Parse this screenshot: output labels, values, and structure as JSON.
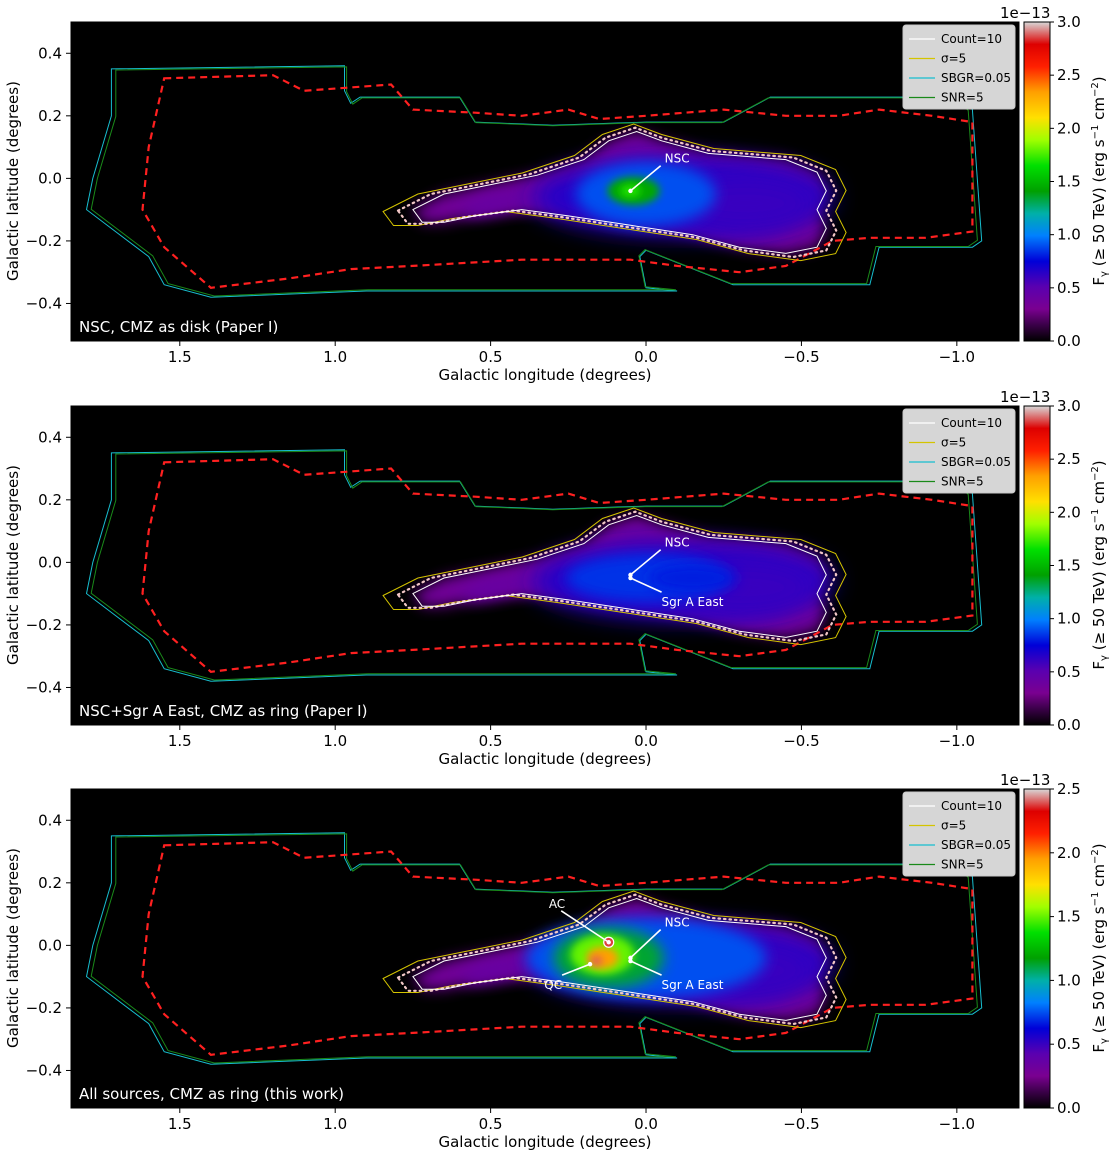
{
  "figure": {
    "xlabel": "Galactic longitude (degrees)",
    "ylabel": "Galactic latitude (degrees)",
    "colorbar_label": "F",
    "colorbar_label_sub": "γ",
    "colorbar_label_rest": " (≥ 50 TeV) (erg s",
    "colorbar_label_exp": "−1",
    "colorbar_label_unit": " cm",
    "colorbar_label_exp2": "−2",
    "colorbar_label_end": ")",
    "colorbar_multiplier": "1e−13",
    "legend": [
      {
        "label": "Count=10",
        "color": "#ffffff"
      },
      {
        "label": "σ=5",
        "color": "#d4c400"
      },
      {
        "label": "SBGR=0.05",
        "color": "#17becf"
      },
      {
        "label": "SNR=5",
        "color": "#1a8a1a"
      }
    ],
    "colors": {
      "background": "#000000",
      "red_dashed": "#ff2020",
      "dotted": "#f2c7c7"
    }
  },
  "chart_data": [
    {
      "type": "heatmap",
      "panel_label": "NSC, CMZ as disk (Paper I)",
      "xlim": [
        1.85,
        -1.2
      ],
      "ylim": [
        -0.52,
        0.5
      ],
      "xticks": [
        1.5,
        1.0,
        0.5,
        0.0,
        -0.5,
        -1.0
      ],
      "xtick_labels": [
        "1.5",
        "1.0",
        "0.5",
        "0.0",
        "−0.5",
        "−1.0"
      ],
      "yticks": [
        0.4,
        0.2,
        0.0,
        -0.2,
        -0.4
      ],
      "ytick_labels": [
        "0.4",
        "0.2",
        "0.0",
        "−0.2",
        "−0.4"
      ],
      "colorbar_range": [
        0.0,
        3.0
      ],
      "colorbar_ticks": [
        "0.0",
        "0.5",
        "1.0",
        "1.5",
        "2.0",
        "2.5",
        "3.0"
      ],
      "peak_value": 1.7,
      "annotations": [
        {
          "text": "NSC",
          "l": -0.06,
          "b": 0.05,
          "target_l": 0.05,
          "target_b": -0.04
        }
      ],
      "legend_placement": "top-right",
      "grid": false
    },
    {
      "type": "heatmap",
      "panel_label": "NSC+Sgr A East, CMZ as ring (Paper I)",
      "xlim": [
        1.85,
        -1.2
      ],
      "ylim": [
        -0.52,
        0.5
      ],
      "xticks": [
        1.5,
        1.0,
        0.5,
        0.0,
        -0.5,
        -1.0
      ],
      "xtick_labels": [
        "1.5",
        "1.0",
        "0.5",
        "0.0",
        "−0.5",
        "−1.0"
      ],
      "yticks": [
        0.4,
        0.2,
        0.0,
        -0.2,
        -0.4
      ],
      "ytick_labels": [
        "0.4",
        "0.2",
        "0.0",
        "−0.2",
        "−0.4"
      ],
      "colorbar_range": [
        0.0,
        3.0
      ],
      "colorbar_ticks": [
        "0.0",
        "0.5",
        "1.0",
        "1.5",
        "2.0",
        "2.5",
        "3.0"
      ],
      "peak_value": 0.8,
      "annotations": [
        {
          "text": "NSC",
          "l": -0.06,
          "b": 0.05,
          "target_l": 0.05,
          "target_b": -0.04
        },
        {
          "text": "Sgr A East",
          "l": -0.05,
          "b": -0.14,
          "target_l": 0.05,
          "target_b": -0.05
        }
      ],
      "legend_placement": "top-right",
      "grid": false
    },
    {
      "type": "heatmap",
      "panel_label": "All sources, CMZ as ring (this work)",
      "xlim": [
        1.85,
        -1.2
      ],
      "ylim": [
        -0.52,
        0.5
      ],
      "xticks": [
        1.5,
        1.0,
        0.5,
        0.0,
        -0.5,
        -1.0
      ],
      "xtick_labels": [
        "1.5",
        "1.0",
        "0.5",
        "0.0",
        "−0.5",
        "−1.0"
      ],
      "yticks": [
        0.4,
        0.2,
        0.0,
        -0.2,
        -0.4
      ],
      "ytick_labels": [
        "0.4",
        "0.2",
        "0.0",
        "−0.2",
        "−0.4"
      ],
      "colorbar_range": [
        0.0,
        2.5
      ],
      "colorbar_ticks": [
        "0.0",
        "0.5",
        "1.0",
        "1.5",
        "2.0",
        "2.5"
      ],
      "peak_value": 2.4,
      "annotations": [
        {
          "text": "AC",
          "l": 0.26,
          "b": 0.12,
          "target_l": 0.12,
          "target_b": 0.01
        },
        {
          "text": "QC",
          "l": 0.27,
          "b": -0.14,
          "target_l": 0.18,
          "target_b": -0.06
        },
        {
          "text": "NSC",
          "l": -0.06,
          "b": 0.06,
          "target_l": 0.05,
          "target_b": -0.04
        },
        {
          "text": "Sgr A East",
          "l": -0.05,
          "b": -0.14,
          "target_l": 0.05,
          "target_b": -0.05
        }
      ],
      "legend_placement": "top-right",
      "grid": false
    }
  ]
}
